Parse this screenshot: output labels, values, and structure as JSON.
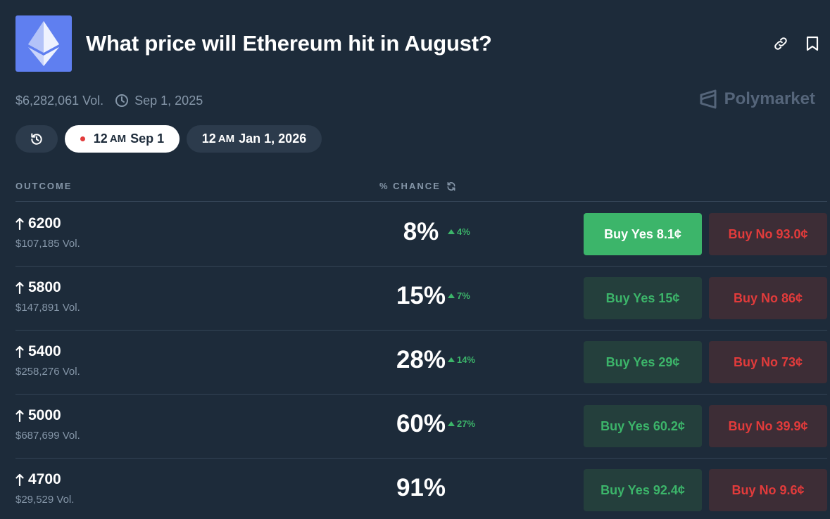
{
  "market": {
    "title": "What price will Ethereum hit in August?",
    "volume": "$6,282,061 Vol.",
    "end_date": "Sep 1, 2025",
    "brand": "Polymarket"
  },
  "date_pills": [
    {
      "hour": "12",
      "ampm": "AM",
      "date": "Sep 1",
      "active": true
    },
    {
      "hour": "12",
      "ampm": "AM",
      "date": "Jan 1, 2026",
      "active": false
    }
  ],
  "table": {
    "col_outcome": "OUTCOME",
    "col_chance": "% CHANCE"
  },
  "outcomes": [
    {
      "label": "6200",
      "volume": "$107,185 Vol.",
      "chance": "8%",
      "delta": "4%",
      "buy_yes": "Buy Yes 8.1¢",
      "buy_no": "Buy No 93.0¢"
    },
    {
      "label": "5800",
      "volume": "$147,891 Vol.",
      "chance": "15%",
      "delta": "7%",
      "buy_yes": "Buy Yes 15¢",
      "buy_no": "Buy No 86¢"
    },
    {
      "label": "5400",
      "volume": "$258,276 Vol.",
      "chance": "28%",
      "delta": "14%",
      "buy_yes": "Buy Yes 29¢",
      "buy_no": "Buy No 73¢"
    },
    {
      "label": "5000",
      "volume": "$687,699 Vol.",
      "chance": "60%",
      "delta": "27%",
      "buy_yes": "Buy Yes 60.2¢",
      "buy_no": "Buy No 39.9¢"
    },
    {
      "label": "4700",
      "volume": "$29,529 Vol.",
      "chance": "91%",
      "delta": "",
      "buy_yes": "Buy Yes 92.4¢",
      "buy_no": "Buy No 9.6¢"
    }
  ],
  "icons": {
    "logo": "ethereum-icon",
    "link": "link-icon",
    "bookmark": "bookmark-icon",
    "clock": "clock-icon",
    "history": "history-icon",
    "refresh": "refresh-icon",
    "arrow": "arrow-up-icon"
  },
  "colors": {
    "background": "#1d2b3a",
    "logo_bg": "#5f7ff0",
    "yes": "#3cb56a",
    "no": "#e23b3b",
    "muted": "#8596a8"
  }
}
